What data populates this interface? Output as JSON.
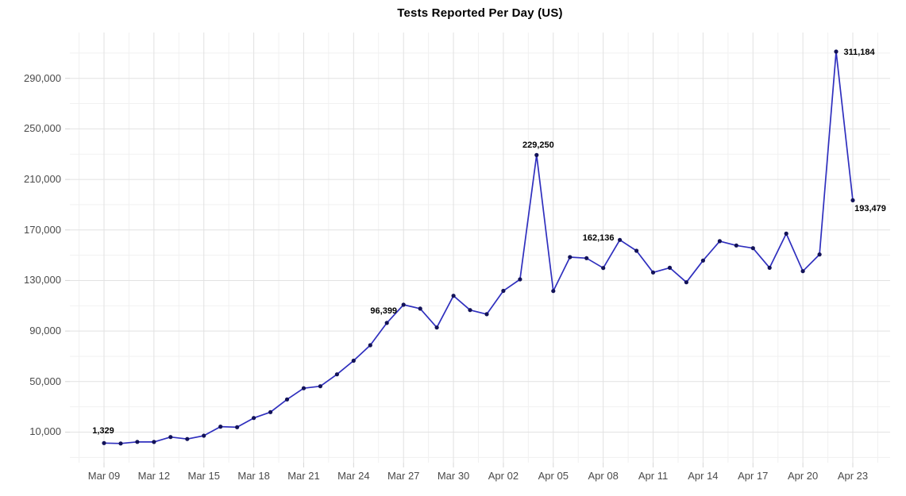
{
  "figure": {
    "title": "Tests Reported Per Day (US)"
  },
  "chart_data": {
    "type": "line",
    "title": "Tests Reported Per Day (US)",
    "xlabel": "",
    "ylabel": "",
    "legend": "none",
    "grid": "major and minor gridlines, light gray on white",
    "x": [
      "Mar 09",
      "Mar 10",
      "Mar 11",
      "Mar 12",
      "Mar 13",
      "Mar 14",
      "Mar 15",
      "Mar 16",
      "Mar 17",
      "Mar 18",
      "Mar 19",
      "Mar 20",
      "Mar 21",
      "Mar 22",
      "Mar 23",
      "Mar 24",
      "Mar 25",
      "Mar 26",
      "Mar 27",
      "Mar 28",
      "Mar 29",
      "Mar 30",
      "Mar 31",
      "Apr 01",
      "Apr 02",
      "Apr 03",
      "Apr 04",
      "Apr 05",
      "Apr 06",
      "Apr 07",
      "Apr 08",
      "Apr 09",
      "Apr 10",
      "Apr 11",
      "Apr 12",
      "Apr 13",
      "Apr 14",
      "Apr 15",
      "Apr 16",
      "Apr 17",
      "Apr 18",
      "Apr 19",
      "Apr 20",
      "Apr 21",
      "Apr 22",
      "Apr 23"
    ],
    "values": [
      1329,
      1000,
      2300,
      2200,
      6100,
      4500,
      7200,
      14300,
      13900,
      21200,
      25800,
      35900,
      44700,
      46300,
      55700,
      66500,
      78800,
      96399,
      110800,
      107700,
      92800,
      117900,
      106600,
      103300,
      121800,
      130900,
      229250,
      121700,
      148500,
      147700,
      139900,
      162136,
      153500,
      136400,
      140100,
      128600,
      145800,
      161100,
      157700,
      155600,
      140100,
      167100,
      137400,
      150600,
      311184,
      193479
    ],
    "x_tick_labels": [
      "Mar 09",
      "Mar 12",
      "Mar 15",
      "Mar 18",
      "Mar 21",
      "Mar 24",
      "Mar 27",
      "Mar 30",
      "Apr 02",
      "Apr 05",
      "Apr 08",
      "Apr 11",
      "Apr 14",
      "Apr 17",
      "Apr 20",
      "Apr 23"
    ],
    "y_ticks": [
      10000,
      50000,
      90000,
      130000,
      170000,
      210000,
      250000,
      290000
    ],
    "y_tick_labels": [
      "10,000",
      "50,000",
      "90,000",
      "130,000",
      "170,000",
      "210,000",
      "250,000",
      "290,000"
    ],
    "y_minor_ticks": [
      -10000,
      30000,
      70000,
      110000,
      150000,
      190000,
      230000,
      270000,
      310000
    ],
    "ylim": [
      -14000,
      327000
    ],
    "annotations": [
      {
        "x": "Mar 09",
        "value": 1329,
        "label": "1,329"
      },
      {
        "x": "Mar 26",
        "value": 96399,
        "label": "96,399"
      },
      {
        "x": "Apr 04",
        "value": 229250,
        "label": "229,250"
      },
      {
        "x": "Apr 09",
        "value": 162136,
        "label": "162,136"
      },
      {
        "x": "Apr 22",
        "value": 311184,
        "label": "311,184"
      },
      {
        "x": "Apr 23",
        "value": 193479,
        "label": "193,479"
      }
    ],
    "colors": {
      "line": "#2f2fbe",
      "point": "#121258",
      "grid_major": "#e2e2e2",
      "grid_minor": "#f1f1f1",
      "tick_mark": "#d5d5d5",
      "axis_text": "#4a4a4a",
      "title": "#000000",
      "annotation": "#000000",
      "background": "#ffffff"
    }
  }
}
